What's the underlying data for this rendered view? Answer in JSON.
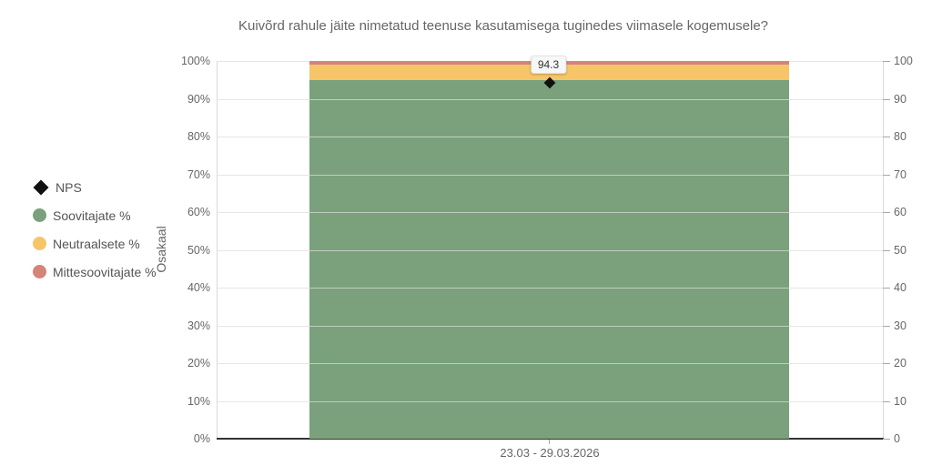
{
  "title": "Kuivõrd rahule jäite nimetatud teenuse kasutamisega tuginedes viimasele kogemusele?",
  "y_axis_left_title": "Osakaal",
  "x_axis_label": "23.03 - 29.03.2026",
  "nps_data_label": "94.3",
  "legend": [
    {
      "label": "NPS",
      "marker": "diamond",
      "color": "#111111"
    },
    {
      "label": "Soovitajate %",
      "marker": "circle",
      "color": "#7AA17B"
    },
    {
      "label": "Neutraalsete %",
      "marker": "circle",
      "color": "#F5C568"
    },
    {
      "label": "Mittesoovitajate %",
      "marker": "circle",
      "color": "#D6837A"
    }
  ],
  "chart_data": {
    "type": "bar",
    "stacked": true,
    "title": "Kuivõrd rahule jäite nimetatud teenuse kasutamisega tuginedes viimasele kogemusele?",
    "categories": [
      "23.03 - 29.03.2026"
    ],
    "series": [
      {
        "name": "Soovitajate %",
        "render": "column",
        "color": "#7AA17B",
        "values": [
          95
        ]
      },
      {
        "name": "Neutraalsete %",
        "render": "column",
        "color": "#F5C568",
        "values": [
          4
        ]
      },
      {
        "name": "Mittesoovitajate %",
        "render": "column",
        "color": "#D6837A",
        "values": [
          1
        ]
      },
      {
        "name": "NPS",
        "render": "point-diamond",
        "color": "#111111",
        "values": [
          94.3
        ],
        "labels": [
          "94.3"
        ]
      }
    ],
    "ylabel": "Osakaal",
    "ylim": [
      0,
      100
    ],
    "y_left_ticks": [
      "0%",
      "10%",
      "20%",
      "30%",
      "40%",
      "50%",
      "60%",
      "70%",
      "80%",
      "90%",
      "100%"
    ],
    "y_right_ticks": [
      "0",
      "10",
      "20",
      "30",
      "40",
      "50",
      "60",
      "70",
      "80",
      "90",
      "100"
    ],
    "grid": true,
    "legend_position": "left"
  },
  "colors": {
    "grid": "#E6E6E6",
    "axis_line": "#D9D9D9",
    "baseline": "#333333",
    "tick": "#A8A8A8",
    "text": "#666666"
  }
}
